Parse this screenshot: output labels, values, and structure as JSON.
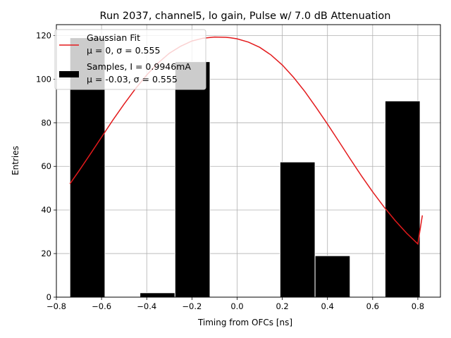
{
  "chart_data": {
    "type": "bar",
    "title": "Run 2037, channel5, lo gain, Pulse w/ 7.0 dB Attenuation",
    "xlabel": "Timing from OFCs [ns]",
    "ylabel": "Entries",
    "xlim": [
      -0.8,
      0.9
    ],
    "ylim": [
      0,
      125
    ],
    "xticks": [
      "−0.8",
      "−0.6",
      "−0.4",
      "−0.2",
      "0.0",
      "0.2",
      "0.4",
      "0.6",
      "0.8"
    ],
    "xtick_values": [
      -0.8,
      -0.6,
      -0.4,
      -0.2,
      0.0,
      0.2,
      0.4,
      0.6,
      0.8
    ],
    "yticks": [
      "0",
      "20",
      "40",
      "60",
      "80",
      "100",
      "120"
    ],
    "ytick_values": [
      0,
      20,
      40,
      60,
      80,
      100,
      120
    ],
    "grid": true,
    "legend_position": "top-left",
    "histogram": {
      "name_line1": "Samples, I = 0.9946mA",
      "name_line2": "μ = -0.03, σ = 0.555",
      "color": "#000000",
      "bins": [
        {
          "x0": -0.74,
          "x1": -0.585,
          "count": 119
        },
        {
          "x0": -0.585,
          "x1": -0.43,
          "count": 0
        },
        {
          "x0": -0.43,
          "x1": -0.275,
          "count": 2
        },
        {
          "x0": -0.275,
          "x1": -0.12,
          "count": 108
        },
        {
          "x0": -0.12,
          "x1": 0.035,
          "count": 0
        },
        {
          "x0": 0.035,
          "x1": 0.19,
          "count": 0
        },
        {
          "x0": 0.19,
          "x1": 0.345,
          "count": 62
        },
        {
          "x0": 0.345,
          "x1": 0.5,
          "count": 19
        },
        {
          "x0": 0.5,
          "x1": 0.655,
          "count": 0
        },
        {
          "x0": 0.655,
          "x1": 0.81,
          "count": 90
        }
      ]
    },
    "fit": {
      "name_line1": "Gaussian Fit",
      "name_line2": "μ = 0, σ = 0.555",
      "color": "#e31a1c",
      "x": [
        -0.74,
        -0.7,
        -0.65,
        -0.6,
        -0.55,
        -0.5,
        -0.45,
        -0.4,
        -0.35,
        -0.3,
        -0.25,
        -0.2,
        -0.15,
        -0.1,
        -0.05,
        -0.03,
        0.0,
        0.05,
        0.1,
        0.15,
        0.2,
        0.25,
        0.3,
        0.35,
        0.4,
        0.45,
        0.5,
        0.55,
        0.6,
        0.65,
        0.7,
        0.75,
        0.8,
        0.82
      ],
      "y": [
        52.0,
        57.9,
        65.6,
        73.4,
        81.2,
        88.6,
        95.6,
        101.9,
        107.4,
        111.9,
        115.1,
        117.5,
        118.8,
        119.3,
        119.2,
        119.0,
        118.5,
        117.0,
        114.6,
        111.1,
        106.5,
        100.8,
        94.3,
        87.0,
        79.4,
        71.5,
        63.5,
        55.7,
        48.3,
        41.4,
        35.1,
        29.4,
        24.4,
        37.5
      ]
    }
  }
}
